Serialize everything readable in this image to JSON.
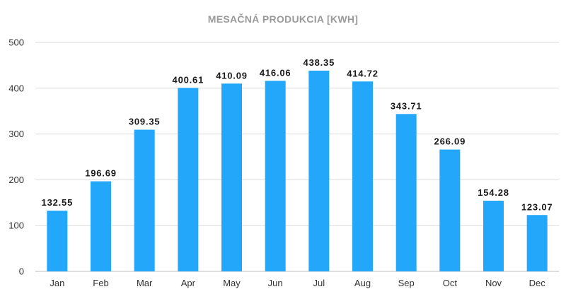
{
  "chart_data": {
    "type": "bar",
    "title": "MESAČNÁ PRODUKCIA [KWH]",
    "xlabel": "",
    "ylabel": "",
    "categories": [
      "Jan",
      "Feb",
      "Mar",
      "Apr",
      "May",
      "Jun",
      "Jul",
      "Aug",
      "Sep",
      "Oct",
      "Nov",
      "Dec"
    ],
    "values": [
      132.55,
      196.69,
      309.35,
      400.61,
      410.09,
      416.06,
      438.35,
      414.72,
      343.71,
      266.09,
      154.28,
      123.07
    ],
    "data_labels": [
      "132.55",
      "196.69",
      "309.35",
      "400.61",
      "410.09",
      "416.06",
      "438.35",
      "414.72",
      "343.71",
      "266.09",
      "154.28",
      "123.07"
    ],
    "ylim": [
      0,
      500
    ],
    "yticks": [
      0,
      100,
      200,
      300,
      400,
      500
    ],
    "grid": true,
    "legend": "none",
    "colors": {
      "bar": "#22a7fb",
      "grid": "#d9d9d9",
      "title": "#9a9a9a"
    }
  }
}
